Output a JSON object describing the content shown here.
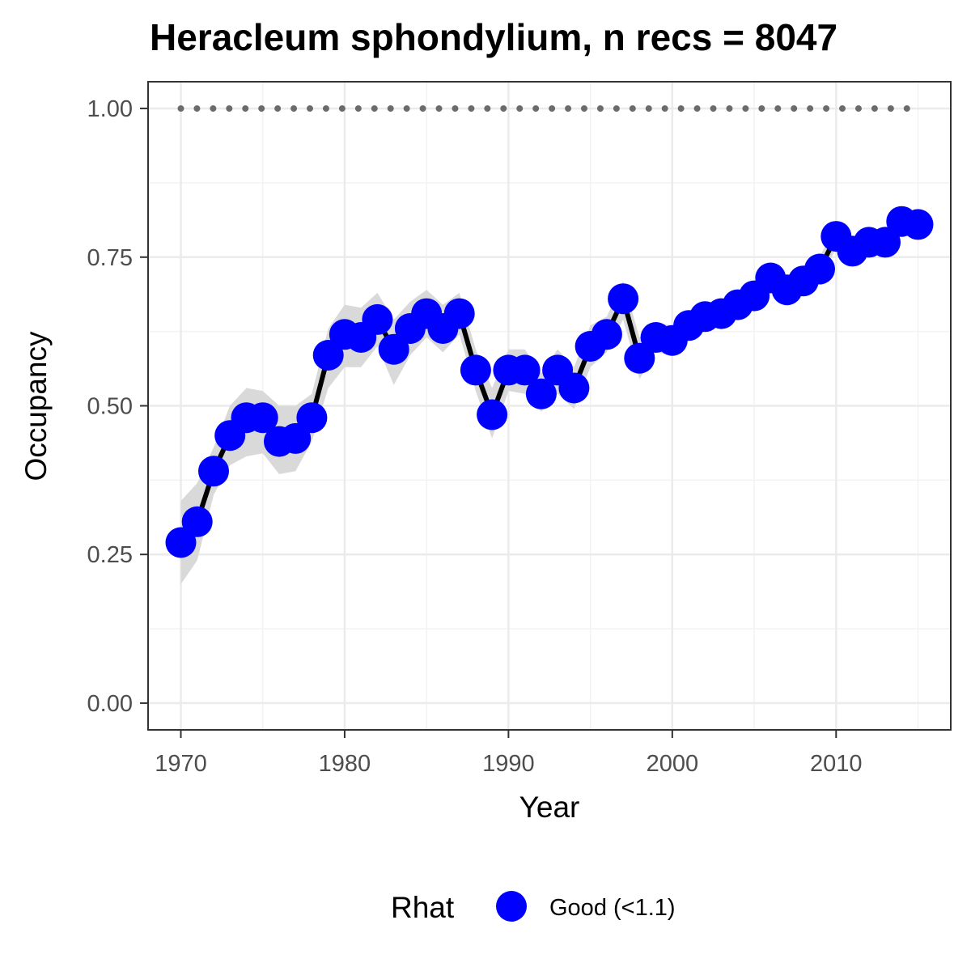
{
  "chart_data": {
    "type": "line",
    "title": "Heracleum sphondylium, n recs = 8047",
    "xlabel": "Year",
    "ylabel": "Occupancy",
    "xlim": [
      1968,
      2017
    ],
    "ylim": [
      -0.045,
      1.045
    ],
    "x_ticks": [
      1970,
      1980,
      1990,
      2000,
      2010
    ],
    "x_tick_labels": [
      "1970",
      "1980",
      "1990",
      "2000",
      "2010"
    ],
    "y_ticks": [
      0,
      0.25,
      0.5,
      0.75,
      1
    ],
    "y_tick_labels": [
      "0.00",
      "0.25",
      "0.50",
      "0.75",
      "1.00"
    ],
    "grid": true,
    "legend": {
      "title": "Rhat",
      "position": "bottom",
      "entries": [
        {
          "label": "Good (<1.1)",
          "color": "#0000ff"
        }
      ]
    },
    "colors": {
      "points": "#0000ff",
      "line": "#000000",
      "band": "#d9d9d9",
      "reference": "#6b6b6b"
    },
    "reference_line": {
      "y": 1.0,
      "style": "dotted"
    },
    "x": [
      1970,
      1971,
      1972,
      1973,
      1974,
      1975,
      1976,
      1977,
      1978,
      1979,
      1980,
      1981,
      1982,
      1983,
      1984,
      1985,
      1986,
      1987,
      1988,
      1989,
      1990,
      1991,
      1992,
      1993,
      1994,
      1995,
      1996,
      1997,
      1998,
      1999,
      2000,
      2001,
      2002,
      2003,
      2004,
      2005,
      2006,
      2007,
      2008,
      2009,
      2010,
      2011,
      2012,
      2013,
      2014,
      2015
    ],
    "series": [
      {
        "name": "Good (<1.1)",
        "values": [
          0.27,
          0.305,
          0.39,
          0.45,
          0.48,
          0.48,
          0.44,
          0.445,
          0.48,
          0.585,
          0.62,
          0.615,
          0.645,
          0.595,
          0.63,
          0.655,
          0.63,
          0.655,
          0.56,
          0.485,
          0.56,
          0.56,
          0.52,
          0.56,
          0.53,
          0.6,
          0.62,
          0.68,
          0.58,
          0.615,
          0.61,
          0.635,
          0.65,
          0.655,
          0.67,
          0.685,
          0.715,
          0.695,
          0.71,
          0.73,
          0.785,
          0.76,
          0.775,
          0.775,
          0.81,
          0.805
        ],
        "lower": [
          0.2,
          0.24,
          0.35,
          0.4,
          0.415,
          0.42,
          0.385,
          0.39,
          0.44,
          0.53,
          0.565,
          0.565,
          0.6,
          0.535,
          0.585,
          0.615,
          0.59,
          0.62,
          0.525,
          0.445,
          0.525,
          0.52,
          0.49,
          0.52,
          0.495,
          0.565,
          0.59,
          0.645,
          0.545,
          0.59,
          0.585,
          0.61,
          0.625,
          0.635,
          0.65,
          0.665,
          0.695,
          0.675,
          0.69,
          0.71,
          0.765,
          0.74,
          0.755,
          0.755,
          0.79,
          0.785
        ],
        "upper": [
          0.34,
          0.37,
          0.43,
          0.5,
          0.53,
          0.525,
          0.5,
          0.5,
          0.52,
          0.63,
          0.67,
          0.665,
          0.69,
          0.645,
          0.675,
          0.695,
          0.67,
          0.69,
          0.595,
          0.53,
          0.595,
          0.595,
          0.555,
          0.595,
          0.565,
          0.635,
          0.65,
          0.71,
          0.615,
          0.64,
          0.635,
          0.66,
          0.675,
          0.675,
          0.69,
          0.705,
          0.735,
          0.715,
          0.73,
          0.75,
          0.805,
          0.78,
          0.795,
          0.795,
          0.83,
          0.825
        ]
      }
    ]
  }
}
